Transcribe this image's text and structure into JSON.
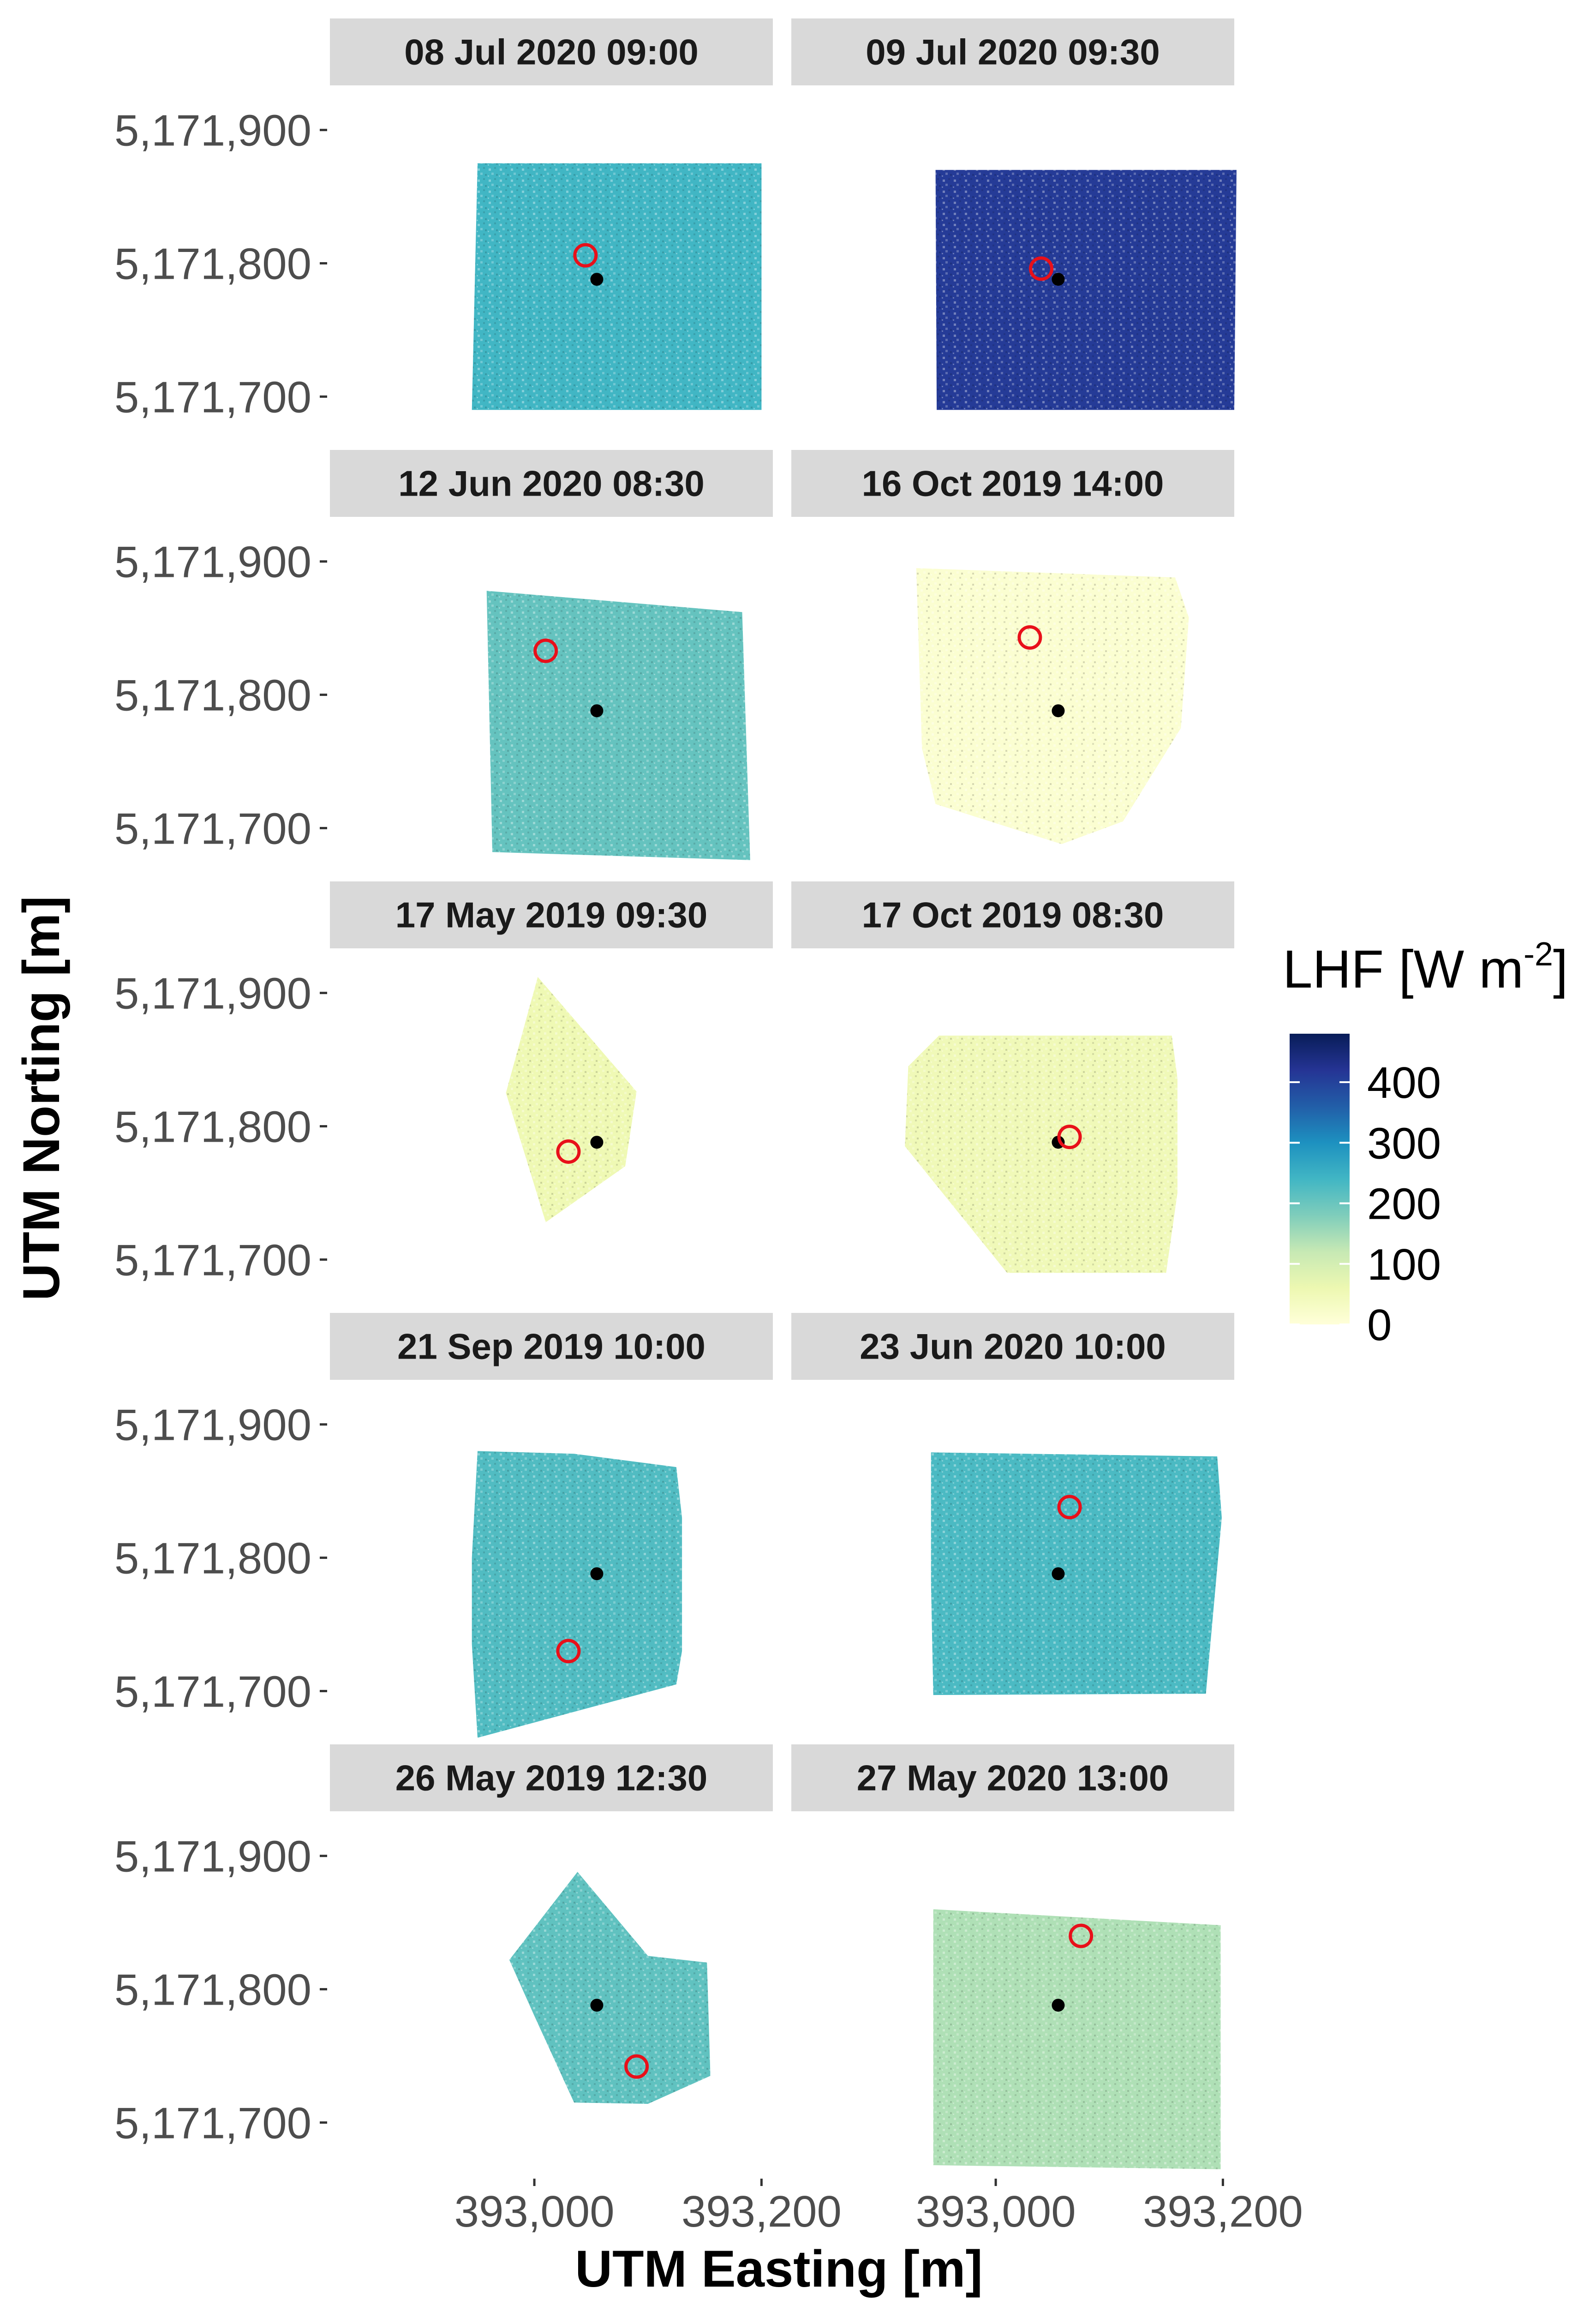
{
  "chart_data": {
    "type": "heatmap",
    "layout": "faceted grid, 5 rows x 2 columns",
    "xlabel": "UTM Easting [m]",
    "ylabel": "UTM Norting [m]",
    "x_ticks": [
      393000,
      393200
    ],
    "x_tick_labels": [
      "393,000",
      "393,200"
    ],
    "y_ticks": [
      5171900,
      5171800,
      5171700
    ],
    "y_tick_labels": [
      "5,171,900",
      "5,171,800",
      "5,171,700"
    ],
    "xlim": [
      392820,
      393210
    ],
    "ylim": [
      5171660,
      5171930
    ],
    "legend": {
      "title_main": "LHF [W m",
      "title_sup": "-2",
      "title_end": "]",
      "min": 0,
      "max": 480,
      "ticks": [
        0,
        100,
        200,
        300,
        400
      ],
      "tick_labels": [
        "0",
        "100",
        "200",
        "300",
        "400"
      ],
      "colors": [
        "#ffffd9",
        "#edf8b1",
        "#c7e9b4",
        "#7fcdbb",
        "#41b6c4",
        "#1d91c0",
        "#225ea8",
        "#253494",
        "#081d58"
      ]
    },
    "tower": {
      "x": 393055,
      "y": 5171788
    },
    "panels": [
      {
        "label": "08 Jul 2020 09:00",
        "mean_lhf": 240,
        "footprint_peak": {
          "x": 393045,
          "y": 5171806
        },
        "extent": [
          [
            392950,
            5171875
          ],
          [
            393200,
            5171875
          ],
          [
            393200,
            5171690
          ],
          [
            392945,
            5171690
          ]
        ]
      },
      {
        "label": "09 Jul 2020 09:30",
        "mean_lhf": 410,
        "footprint_peak": {
          "x": 393040,
          "y": 5171796
        },
        "extent": [
          [
            392947,
            5171870
          ],
          [
            393212,
            5171870
          ],
          [
            393210,
            5171690
          ],
          [
            392948,
            5171690
          ]
        ]
      },
      {
        "label": "12 Jun 2020 08:30",
        "mean_lhf": 205,
        "footprint_peak": {
          "x": 393010,
          "y": 5171833
        },
        "extent": [
          [
            392958,
            5171878
          ],
          [
            393183,
            5171862
          ],
          [
            393190,
            5171676
          ],
          [
            392963,
            5171682
          ]
        ]
      },
      {
        "label": "16 Oct 2019 14:00",
        "mean_lhf": 12,
        "footprint_peak": {
          "x": 393030,
          "y": 5171843
        },
        "extent": [
          [
            392930,
            5171895
          ],
          [
            393158,
            5171888
          ],
          [
            393170,
            5171858
          ],
          [
            393163,
            5171775
          ],
          [
            393112,
            5171705
          ],
          [
            393058,
            5171688
          ],
          [
            392947,
            5171718
          ],
          [
            392935,
            5171760
          ]
        ]
      },
      {
        "label": "17 May 2019 09:30",
        "mean_lhf": 55,
        "footprint_peak": {
          "x": 393030,
          "y": 5171781
        },
        "extent": [
          [
            392975,
            5171825
          ],
          [
            393003,
            5171912
          ],
          [
            393090,
            5171826
          ],
          [
            393080,
            5171770
          ],
          [
            393010,
            5171728
          ]
        ]
      },
      {
        "label": "17 Oct 2019 08:30",
        "mean_lhf": 50,
        "footprint_peak": {
          "x": 393065,
          "y": 5171792
        },
        "extent": [
          [
            392950,
            5171868
          ],
          [
            393155,
            5171868
          ],
          [
            393160,
            5171836
          ],
          [
            393160,
            5171750
          ],
          [
            393150,
            5171690
          ],
          [
            393010,
            5171690
          ],
          [
            392920,
            5171785
          ],
          [
            392923,
            5171845
          ]
        ]
      },
      {
        "label": "21 Sep 2019 10:00",
        "mean_lhf": 225,
        "footprint_peak": {
          "x": 393030,
          "y": 5171730
        },
        "extent": [
          [
            392950,
            5171880
          ],
          [
            393035,
            5171878
          ],
          [
            393125,
            5171868
          ],
          [
            393130,
            5171830
          ],
          [
            393130,
            5171730
          ],
          [
            393125,
            5171705
          ],
          [
            392950,
            5171665
          ],
          [
            392945,
            5171735
          ],
          [
            392945,
            5171800
          ]
        ]
      },
      {
        "label": "23 Jun 2020 10:00",
        "mean_lhf": 230,
        "footprint_peak": {
          "x": 393065,
          "y": 5171838
        },
        "extent": [
          [
            392943,
            5171879
          ],
          [
            393195,
            5171876
          ],
          [
            393199,
            5171830
          ],
          [
            393185,
            5171698
          ],
          [
            392945,
            5171697
          ],
          [
            392943,
            5171780
          ]
        ]
      },
      {
        "label": "26 May 2019 12:30",
        "mean_lhf": 210,
        "footprint_peak": {
          "x": 393090,
          "y": 5171742
        },
        "extent": [
          [
            392978,
            5171822
          ],
          [
            393038,
            5171888
          ],
          [
            393100,
            5171825
          ],
          [
            393152,
            5171820
          ],
          [
            393155,
            5171735
          ],
          [
            393100,
            5171714
          ],
          [
            393035,
            5171715
          ],
          [
            393000,
            5171780
          ]
        ]
      },
      {
        "label": "27 May 2020 13:00",
        "mean_lhf": 140,
        "footprint_peak": {
          "x": 393075,
          "y": 5171840
        },
        "extent": [
          [
            392945,
            5171860
          ],
          [
            393198,
            5171848
          ],
          [
            393198,
            5171665
          ],
          [
            392945,
            5171668
          ]
        ]
      }
    ]
  }
}
